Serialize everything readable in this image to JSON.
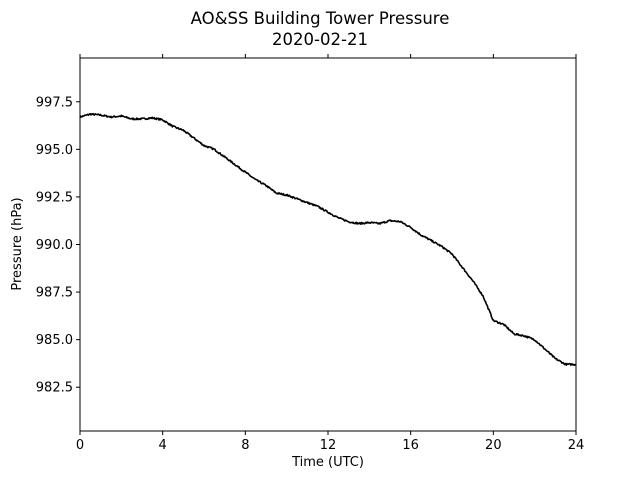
{
  "chart_data": {
    "type": "line",
    "title": "AO&SS Building Tower Pressure",
    "subtitle": "2020-02-21",
    "xlabel": "Time (UTC)",
    "ylabel": "Pressure (hPa)",
    "xlim": [
      0,
      24
    ],
    "ylim": [
      980.2,
      999.8
    ],
    "x_ticks": [
      0,
      4,
      8,
      12,
      16,
      20,
      24
    ],
    "y_ticks": [
      982.5,
      985.0,
      987.5,
      990.0,
      992.5,
      995.0,
      997.5
    ],
    "x_tick_labels": [
      "0",
      "4",
      "8",
      "12",
      "16",
      "20",
      "24"
    ],
    "y_tick_labels": [
      "982.5",
      "985.0",
      "987.5",
      "990.0",
      "992.5",
      "995.0",
      "997.5"
    ],
    "grid": false,
    "line_color": "#000000",
    "series": [
      {
        "x": [
          0,
          0.5,
          1,
          1.5,
          2,
          2.5,
          3,
          3.5,
          4,
          4.5,
          5,
          5.5,
          6,
          6.5,
          7,
          7.5,
          8,
          8.5,
          9,
          9.5,
          10,
          10.5,
          11,
          11.5,
          12,
          12.5,
          13,
          13.5,
          14,
          14.5,
          15,
          15.5,
          16,
          16.5,
          17,
          17.5,
          18,
          18.5,
          19,
          19.5,
          20,
          20.5,
          21,
          21.5,
          22,
          22.5,
          23,
          23.5,
          24
        ],
        "y": [
          996.7,
          996.85,
          996.8,
          996.7,
          996.75,
          996.6,
          996.6,
          996.65,
          996.55,
          996.2,
          996.0,
          995.6,
          995.2,
          995.0,
          994.6,
          994.2,
          993.8,
          993.4,
          993.1,
          992.7,
          992.6,
          992.4,
          992.2,
          992.0,
          991.7,
          991.4,
          991.2,
          991.1,
          991.15,
          991.1,
          991.25,
          991.2,
          990.9,
          990.5,
          990.2,
          989.9,
          989.5,
          988.8,
          988.1,
          987.3,
          986.0,
          985.8,
          985.3,
          985.2,
          985.0,
          984.5,
          984.0,
          983.7,
          983.7
        ]
      }
    ]
  }
}
